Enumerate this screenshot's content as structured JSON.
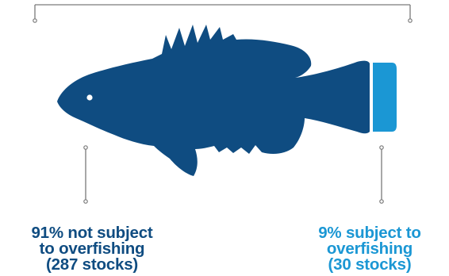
{
  "colors": {
    "majority": "#0f4c81",
    "minority": "#1b97d4",
    "bracket": "#7a7a7a",
    "background": "#ffffff"
  },
  "chart_data": {
    "type": "proportion-diagram",
    "segments": [
      {
        "percent": 91,
        "stocks": 287
      },
      {
        "percent": 9,
        "stocks": 30
      }
    ]
  },
  "labels": {
    "not_subject": {
      "line1": "91% not subject",
      "line2": "to overfishing",
      "line3": "(287 stocks)"
    },
    "subject": {
      "line1": "9% subject to",
      "line2": "overfishing",
      "line3": "(30 stocks)"
    }
  }
}
